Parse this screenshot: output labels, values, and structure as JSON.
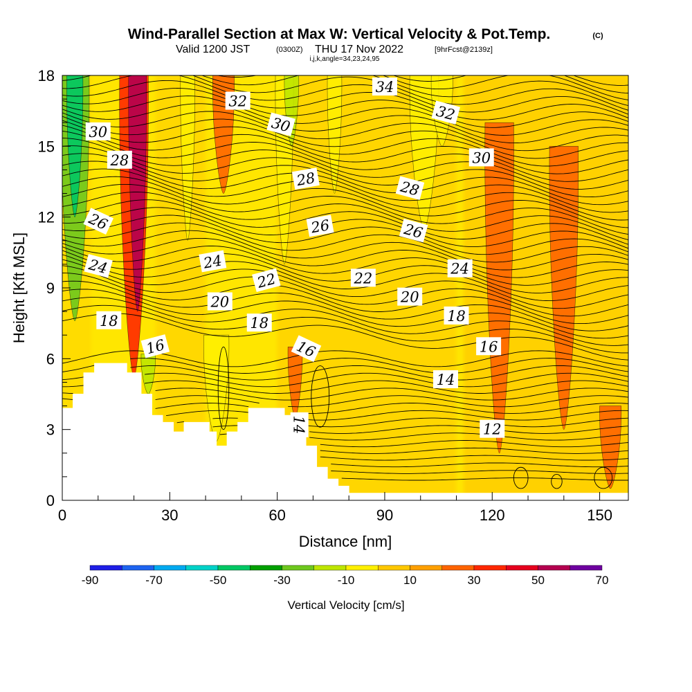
{
  "title": {
    "main": "Wind-Parallel Section at Max W: Vertical Velocity & Pot.Temp.",
    "main_unit": "(C)",
    "valid_prefix": "Valid 1200 JST",
    "valid_utc": "(0300Z)",
    "valid_date": "THU 17 Nov 2022",
    "forecast": "[9hrFcst@2139z]",
    "params": "i,j,k,angle=34,23,24,95"
  },
  "chart_data": {
    "type": "heatmap",
    "xlabel": "Distance [nm]",
    "ylabel": "Height [Kft MSL]",
    "xlim": [
      0,
      158
    ],
    "ylim": [
      0,
      18
    ],
    "xticks": [
      0,
      30,
      60,
      90,
      120,
      150
    ],
    "yticks": [
      0,
      3,
      6,
      9,
      12,
      15,
      18
    ],
    "x_minor_step": 10,
    "y_minor_step": 1,
    "background_field": "yellow-orange",
    "colorbar": {
      "label": "Vertical Velocity [cm/s]",
      "tick_labels": [
        "-90",
        "-70",
        "-50",
        "-30",
        "-10",
        "10",
        "30",
        "50",
        "70"
      ],
      "tick_values": [
        -90,
        -70,
        -50,
        -30,
        -10,
        10,
        30,
        50,
        70
      ],
      "colors": [
        "#1e1ee6",
        "#1e64f0",
        "#00aaf0",
        "#00d2c8",
        "#00c864",
        "#00a000",
        "#6ec81e",
        "#bee600",
        "#fff000",
        "#ffc800",
        "#ffa000",
        "#ff6400",
        "#ff2800",
        "#e6001e",
        "#b40050",
        "#6e00a0"
      ]
    },
    "terrain": [
      [
        0,
        3.9
      ],
      [
        3,
        3.9
      ],
      [
        3,
        4.5
      ],
      [
        6,
        4.5
      ],
      [
        6,
        5.4
      ],
      [
        9,
        5.4
      ],
      [
        9,
        5.8
      ],
      [
        18,
        5.8
      ],
      [
        18,
        5.4
      ],
      [
        22,
        5.4
      ],
      [
        22,
        4.5
      ],
      [
        25,
        4.5
      ],
      [
        25,
        3.6
      ],
      [
        28,
        3.6
      ],
      [
        28,
        3.3
      ],
      [
        31,
        3.3
      ],
      [
        31,
        2.9
      ],
      [
        34,
        2.9
      ],
      [
        34,
        3.3
      ],
      [
        41,
        3.3
      ],
      [
        41,
        2.9
      ],
      [
        43,
        2.9
      ],
      [
        43,
        2.3
      ],
      [
        46,
        2.3
      ],
      [
        46,
        2.9
      ],
      [
        49,
        2.9
      ],
      [
        49,
        3.3
      ],
      [
        52,
        3.3
      ],
      [
        52,
        3.9
      ],
      [
        62,
        3.9
      ],
      [
        62,
        3.6
      ],
      [
        65,
        3.6
      ],
      [
        65,
        2.9
      ],
      [
        68,
        2.9
      ],
      [
        68,
        2.3
      ],
      [
        71,
        2.3
      ],
      [
        71,
        1.4
      ],
      [
        74,
        1.4
      ],
      [
        74,
        0.9
      ],
      [
        77,
        0.9
      ],
      [
        77,
        0.6
      ],
      [
        80,
        0.6
      ],
      [
        80,
        0.3
      ],
      [
        83,
        0.3
      ],
      [
        83,
        0.3
      ],
      [
        158,
        0.3
      ]
    ],
    "w_features": [
      {
        "x": 3.5,
        "y0": 7.6,
        "y1": 18,
        "w": 8,
        "v": -40
      },
      {
        "x": 3.5,
        "y0": 12,
        "y1": 18,
        "w": 4.5,
        "v": -60
      },
      {
        "x": 20,
        "y0": 5.2,
        "y1": 18,
        "w": 8,
        "v": 20
      },
      {
        "x": 21,
        "y0": 8,
        "y1": 18,
        "w": 5,
        "v": 40
      },
      {
        "x": 24,
        "y0": 4.5,
        "y1": 6.2,
        "w": 4,
        "v": -30
      },
      {
        "x": 35,
        "y0": 11,
        "y1": 18,
        "w": 4,
        "v": -15
      },
      {
        "x": 43,
        "y0": 2.5,
        "y1": 7,
        "w": 7,
        "v": -15
      },
      {
        "x": 45,
        "y0": 13,
        "y1": 18,
        "w": 6,
        "v": 15
      },
      {
        "x": 62,
        "y0": 10,
        "y1": 18,
        "w": 5,
        "v": -20
      },
      {
        "x": 64,
        "y0": 15,
        "y1": 18,
        "w": 4,
        "v": -30
      },
      {
        "x": 65,
        "y0": 3.5,
        "y1": 6.5,
        "w": 4,
        "v": 15
      },
      {
        "x": 76,
        "y0": 13,
        "y1": 18,
        "w": 4,
        "v": -15
      },
      {
        "x": 101,
        "y0": 11.5,
        "y1": 18,
        "w": 8,
        "v": -15
      },
      {
        "x": 106,
        "y0": 15,
        "y1": 18,
        "w": 6,
        "v": -15
      },
      {
        "x": 122,
        "y0": 2,
        "y1": 16,
        "w": 8,
        "v": 15
      },
      {
        "x": 140,
        "y0": 3,
        "y1": 15,
        "w": 8,
        "v": 15
      },
      {
        "x": 153,
        "y0": 0.5,
        "y1": 4,
        "w": 6,
        "v": 15
      }
    ],
    "theta_contours": {
      "levels": [
        12,
        14,
        16,
        18,
        20,
        22,
        24,
        26,
        28,
        30,
        32,
        34
      ],
      "labels": [
        {
          "text": "12",
          "x": 120,
          "y": 3.0,
          "angle": 0
        },
        {
          "text": "14",
          "x": 107,
          "y": 5.1,
          "angle": 0
        },
        {
          "text": "14",
          "x": 66,
          "y": 3.2,
          "angle": 90
        },
        {
          "text": "16",
          "x": 119,
          "y": 6.5,
          "angle": 0
        },
        {
          "text": "16",
          "x": 26,
          "y": 6.5,
          "angle": -15
        },
        {
          "text": "16",
          "x": 68,
          "y": 6.4,
          "angle": 25
        },
        {
          "text": "18",
          "x": 110,
          "y": 7.8,
          "angle": 0
        },
        {
          "text": "18",
          "x": 13,
          "y": 7.6,
          "angle": 0
        },
        {
          "text": "18",
          "x": 55,
          "y": 7.5,
          "angle": 0
        },
        {
          "text": "20",
          "x": 97,
          "y": 8.6,
          "angle": 0
        },
        {
          "text": "20",
          "x": 44,
          "y": 8.4,
          "angle": 0
        },
        {
          "text": "22",
          "x": 84,
          "y": 9.4,
          "angle": 0
        },
        {
          "text": "22",
          "x": 57,
          "y": 9.3,
          "angle": -15
        },
        {
          "text": "24",
          "x": 111,
          "y": 9.8,
          "angle": 0
        },
        {
          "text": "24",
          "x": 42,
          "y": 10.1,
          "angle": -10
        },
        {
          "text": "24",
          "x": 10,
          "y": 9.9,
          "angle": 15
        },
        {
          "text": "26",
          "x": 98,
          "y": 11.4,
          "angle": 15
        },
        {
          "text": "26",
          "x": 72,
          "y": 11.6,
          "angle": -10
        },
        {
          "text": "26",
          "x": 10,
          "y": 11.8,
          "angle": 25
        },
        {
          "text": "28",
          "x": 97,
          "y": 13.2,
          "angle": 15
        },
        {
          "text": "28",
          "x": 68,
          "y": 13.6,
          "angle": -10
        },
        {
          "text": "28",
          "x": 16,
          "y": 14.4,
          "angle": 0
        },
        {
          "text": "30",
          "x": 117,
          "y": 14.5,
          "angle": 0
        },
        {
          "text": "30",
          "x": 61,
          "y": 15.9,
          "angle": 15
        },
        {
          "text": "30",
          "x": 10,
          "y": 15.6,
          "angle": 0
        },
        {
          "text": "32",
          "x": 107,
          "y": 16.4,
          "angle": 15
        },
        {
          "text": "32",
          "x": 49,
          "y": 16.9,
          "angle": 0
        },
        {
          "text": "34",
          "x": 90,
          "y": 17.5,
          "angle": 0
        }
      ]
    }
  }
}
